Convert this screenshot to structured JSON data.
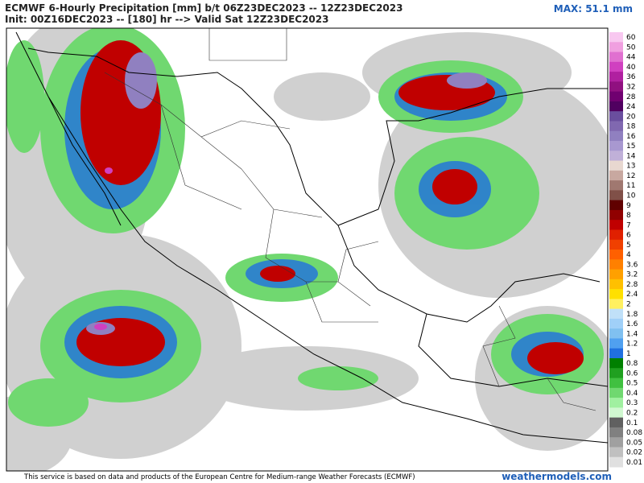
{
  "header": {
    "title": "ECMWF 6-Hourly Precipitation [mm] b/t 06Z23DEC2023 -- 12Z23DEC2023",
    "subtitle": "Init: 00Z16DEC2023 -- [180] hr --> Valid Sat 12Z23DEC2023",
    "max": "MAX: 51.1 mm"
  },
  "colorbar": [
    {
      "label": "60",
      "color": "#f8c8f0"
    },
    {
      "label": "50",
      "color": "#f0a0e0"
    },
    {
      "label": "44",
      "color": "#e070d0"
    },
    {
      "label": "40",
      "color": "#d040c0"
    },
    {
      "label": "36",
      "color": "#b020a0"
    },
    {
      "label": "32",
      "color": "#901080"
    },
    {
      "label": "28",
      "color": "#700070"
    },
    {
      "label": "24",
      "color": "#500060"
    },
    {
      "label": "20",
      "color": "#6a4e9e"
    },
    {
      "label": "18",
      "color": "#8068b0"
    },
    {
      "label": "16",
      "color": "#9080c0"
    },
    {
      "label": "15",
      "color": "#a898d0"
    },
    {
      "label": "14",
      "color": "#c0b0d8"
    },
    {
      "label": "13",
      "color": "#e8d8d0"
    },
    {
      "label": "12",
      "color": "#c8a8a0"
    },
    {
      "label": "11",
      "color": "#a07870"
    },
    {
      "label": "10",
      "color": "#805048"
    },
    {
      "label": "9",
      "color": "#600000"
    },
    {
      "label": "8",
      "color": "#900000"
    },
    {
      "label": "7",
      "color": "#c00000"
    },
    {
      "label": "6",
      "color": "#e02000"
    },
    {
      "label": "5",
      "color": "#f04000"
    },
    {
      "label": "4",
      "color": "#ff6000"
    },
    {
      "label": "3.6",
      "color": "#ff8000"
    },
    {
      "label": "3.2",
      "color": "#ffa000"
    },
    {
      "label": "2.8",
      "color": "#ffc000"
    },
    {
      "label": "2.4",
      "color": "#ffe000"
    },
    {
      "label": "2",
      "color": "#fff060"
    },
    {
      "label": "1.8",
      "color": "#c0e0f8"
    },
    {
      "label": "1.6",
      "color": "#a0d0f8"
    },
    {
      "label": "1.4",
      "color": "#80c0f0"
    },
    {
      "label": "1.2",
      "color": "#50a0f0"
    },
    {
      "label": "1",
      "color": "#2070e0"
    },
    {
      "label": "0.8",
      "color": "#008000"
    },
    {
      "label": "0.6",
      "color": "#20a020"
    },
    {
      "label": "0.5",
      "color": "#40c040"
    },
    {
      "label": "0.4",
      "color": "#70d870"
    },
    {
      "label": "0.3",
      "color": "#a0f0a0"
    },
    {
      "label": "0.2",
      "color": "#d0f8d0"
    },
    {
      "label": "0.1",
      "color": "#606060"
    },
    {
      "label": "0.08",
      "color": "#808080"
    },
    {
      "label": "0.05",
      "color": "#a0a0a0"
    },
    {
      "label": "0.02",
      "color": "#c0c0c0"
    },
    {
      "label": "0.01",
      "color": "#e0e0e0"
    }
  ],
  "footer": {
    "credit": "This service is based on data and products of the European Centre for Medium-range Weather Forecasts (ECMWF)",
    "brand": "weathermodels.com"
  }
}
